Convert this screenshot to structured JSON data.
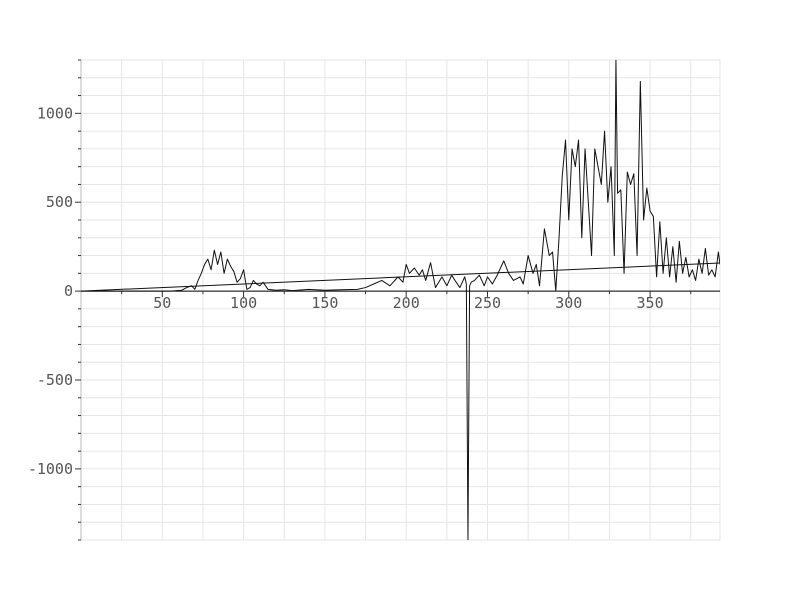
{
  "chart_data": {
    "type": "line",
    "title": "",
    "xlabel": "",
    "ylabel": "",
    "xlim": [
      0,
      393
    ],
    "ylim": [
      -1400,
      1300
    ],
    "grid": true,
    "x_tick_labels": [
      "50",
      "100",
      "150",
      "200",
      "250",
      "300",
      "350"
    ],
    "y_tick_labels": [
      "1000",
      "500",
      "0",
      "-500",
      "-1000"
    ],
    "x_ticks": [
      50,
      100,
      150,
      200,
      250,
      300,
      350
    ],
    "y_ticks": [
      1000,
      500,
      0,
      -500,
      -1000
    ],
    "series": [
      {
        "x": [
          0,
          30,
          55,
          62,
          65,
          68,
          70,
          72,
          74,
          76,
          78,
          80,
          82,
          84,
          86,
          88,
          90,
          92,
          94,
          96,
          98,
          100,
          102,
          104,
          106,
          108,
          110,
          112,
          115,
          120,
          125,
          130,
          140,
          150,
          160,
          170,
          175,
          180,
          185,
          190,
          195,
          198,
          200,
          202,
          205,
          208,
          210,
          212,
          215,
          218,
          220,
          222,
          225,
          228,
          230,
          233,
          236,
          237,
          238,
          239,
          240,
          242,
          245,
          248,
          250,
          253,
          256,
          260,
          263,
          266,
          270,
          272,
          275,
          278,
          280,
          282,
          285,
          288,
          290,
          292,
          294,
          296,
          298,
          300,
          302,
          304,
          306,
          308,
          310,
          312,
          314,
          316,
          318,
          320,
          322,
          324,
          326,
          328,
          329,
          330,
          332,
          334,
          336,
          338,
          340,
          342,
          344,
          346,
          348,
          350,
          352,
          354,
          356,
          358,
          360,
          362,
          364,
          366,
          368,
          370,
          372,
          374,
          376,
          378,
          380,
          382,
          384,
          386,
          388,
          390,
          392,
          393
        ],
        "y": [
          0,
          0,
          0,
          5,
          20,
          30,
          10,
          60,
          100,
          150,
          180,
          120,
          230,
          150,
          220,
          100,
          180,
          140,
          110,
          50,
          70,
          120,
          10,
          20,
          60,
          40,
          30,
          50,
          10,
          5,
          8,
          3,
          10,
          5,
          8,
          10,
          20,
          40,
          60,
          30,
          80,
          50,
          150,
          100,
          130,
          90,
          120,
          60,
          160,
          20,
          50,
          80,
          30,
          90,
          60,
          20,
          80,
          40,
          -1400,
          30,
          50,
          60,
          90,
          30,
          80,
          40,
          90,
          170,
          100,
          60,
          80,
          40,
          200,
          100,
          150,
          30,
          350,
          200,
          220,
          0,
          300,
          650,
          850,
          400,
          800,
          700,
          850,
          300,
          800,
          500,
          200,
          800,
          700,
          600,
          900,
          500,
          700,
          200,
          1300,
          550,
          570,
          100,
          670,
          600,
          660,
          200,
          1180,
          400,
          580,
          450,
          420,
          80,
          390,
          100,
          300,
          80,
          250,
          50,
          280,
          100,
          190,
          80,
          120,
          60,
          180,
          100,
          240,
          90,
          120,
          80,
          220,
          150
        ]
      },
      {
        "x": [
          0,
          393
        ],
        "y": [
          0,
          158
        ]
      }
    ]
  }
}
